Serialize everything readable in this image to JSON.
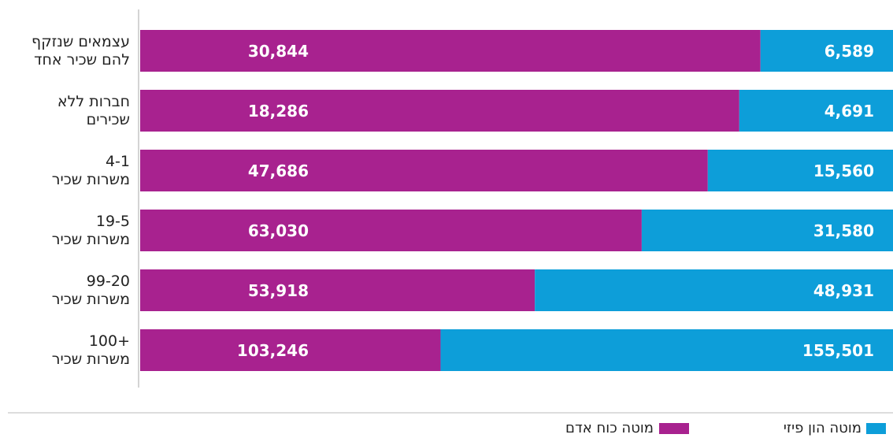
{
  "chart_data": {
    "type": "bar",
    "orientation": "horizontal",
    "stacked": "percent",
    "categories": [
      "עצמאים שנזקף\nלהם שכיר אחד",
      "חברות ללא\nשכירים",
      "4-1\nמשרות שכיר",
      "19-5\nמשרות שכיר",
      "99-20\nמשרות שכיר",
      "+100\nמשרות שכיר"
    ],
    "series": [
      {
        "name": "מוטה כוח אדם",
        "color": "#a8228f",
        "values": [
          30844,
          18286,
          47686,
          63030,
          53918,
          103246
        ],
        "value_labels": [
          "30,844",
          "18,286",
          "47,686",
          "63,030",
          "53,918",
          "103,246"
        ]
      },
      {
        "name": "מוטה הון פיזי",
        "color": "#0d9ed9",
        "values": [
          6589,
          4691,
          15560,
          31580,
          48931,
          155501
        ],
        "value_labels": [
          "6,589",
          "4,691",
          "15,560",
          "31,580",
          "48,931",
          "155,501"
        ]
      }
    ]
  }
}
